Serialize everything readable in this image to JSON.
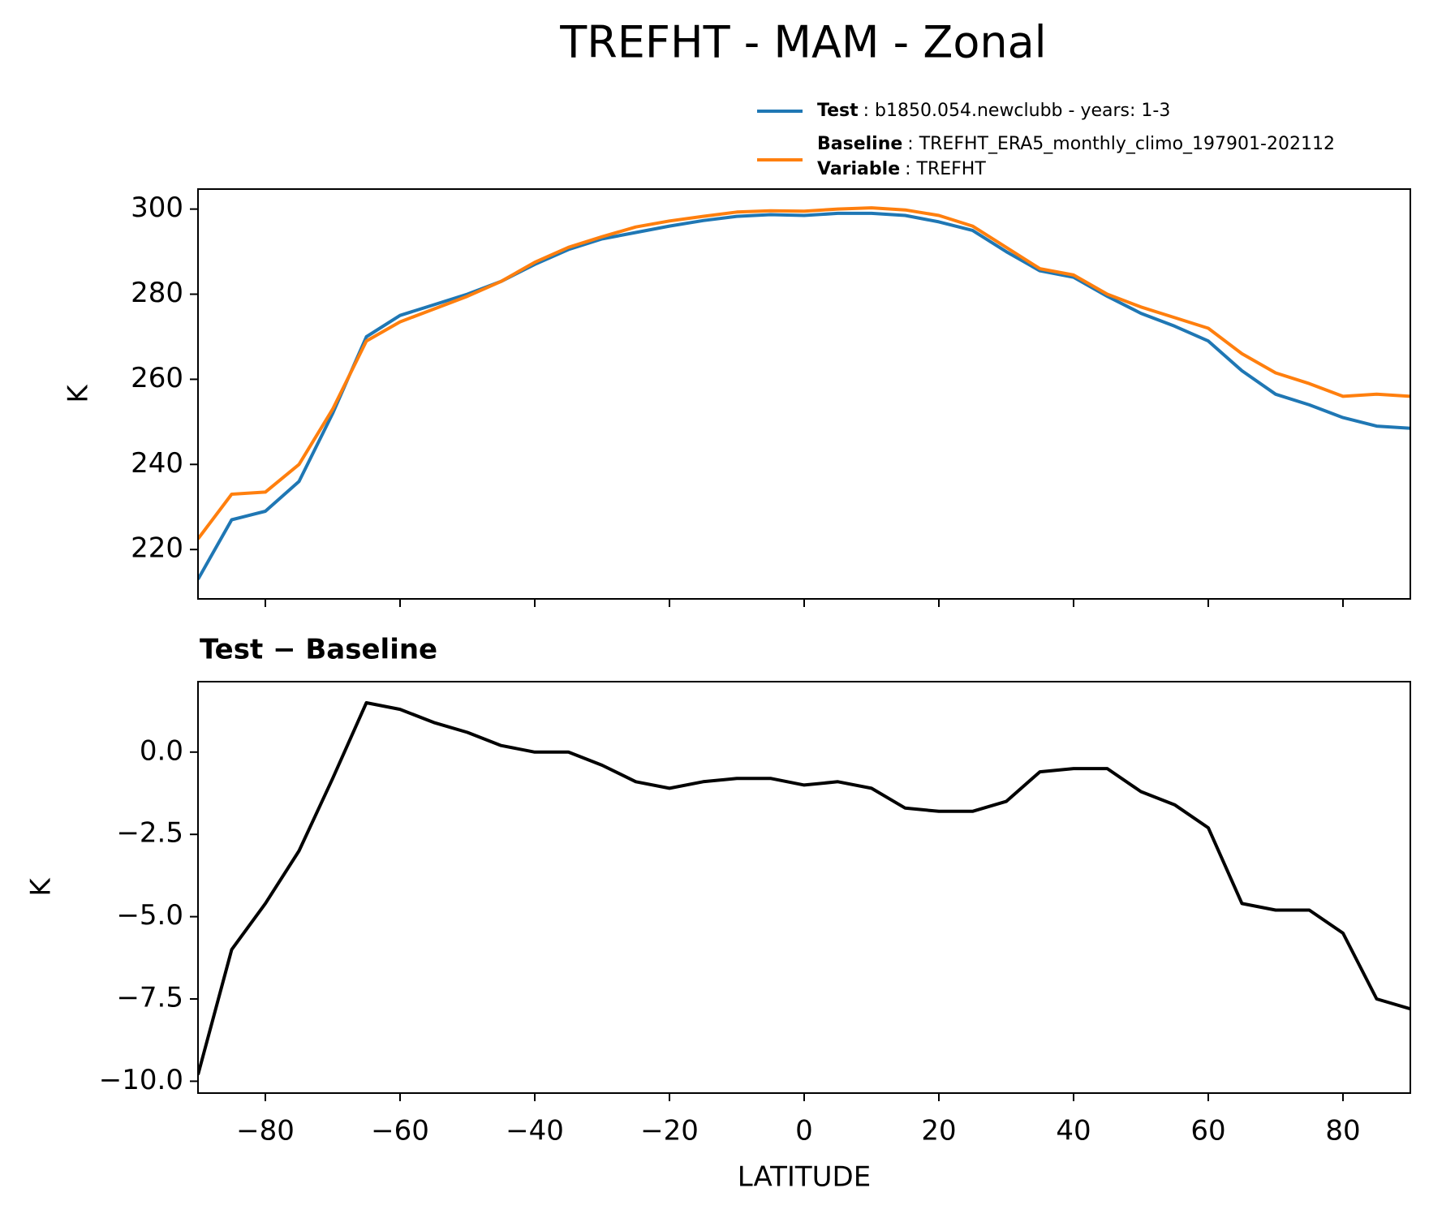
{
  "title": "TREFHT - MAM - Zonal",
  "chart_data": [
    {
      "type": "line",
      "ylabel": "K",
      "x": [
        -90,
        -85,
        -80,
        -75,
        -70,
        -65,
        -60,
        -55,
        -50,
        -45,
        -40,
        -35,
        -30,
        -25,
        -20,
        -15,
        -10,
        -5,
        0,
        5,
        10,
        15,
        20,
        25,
        30,
        35,
        40,
        45,
        50,
        55,
        60,
        65,
        70,
        75,
        80,
        85,
        90
      ],
      "series": [
        {
          "name": "Test",
          "description": ": b1850.054.newclubb - years: 1-3",
          "color": "#1f77b4",
          "values": [
            213,
            227,
            229,
            236,
            252,
            270,
            275,
            277.5,
            280,
            283,
            287,
            290.5,
            293,
            294.5,
            296,
            297.3,
            298.3,
            298.7,
            298.5,
            299,
            299,
            298.5,
            297,
            295,
            290,
            285.5,
            284,
            279.5,
            275.5,
            272.5,
            269,
            262,
            256.5,
            254,
            251,
            249,
            248.5
          ]
        },
        {
          "name": "Baseline",
          "description": ": TREFHT_ERA5_monthly_climo_197901-202112",
          "color": "#ff7f0e",
          "values": [
            222.5,
            233,
            233.5,
            240,
            253,
            269,
            273.5,
            276.5,
            279.5,
            283,
            287.5,
            291,
            293.5,
            295.8,
            297.2,
            298.3,
            299.3,
            299.6,
            299.5,
            300,
            300.3,
            299.8,
            298.5,
            296,
            291,
            286,
            284.5,
            280,
            277,
            274.5,
            272,
            266,
            261.5,
            259,
            256,
            256.5,
            256
          ]
        }
      ],
      "legend_extra": {
        "label": "Variable",
        "description": ": TREFHT"
      },
      "xlim": [
        -90,
        90
      ],
      "xticks": [
        -80,
        -60,
        -40,
        -20,
        0,
        20,
        40,
        60,
        80
      ],
      "ylim": [
        208.4,
        304.7
      ],
      "yticks": [
        220,
        240,
        260,
        280,
        300
      ]
    },
    {
      "type": "line",
      "title": "Test − Baseline",
      "ylabel": "K",
      "xlabel": "LATITUDE",
      "x": [
        -90,
        -85,
        -80,
        -75,
        -70,
        -65,
        -60,
        -55,
        -50,
        -45,
        -40,
        -35,
        -30,
        -25,
        -20,
        -15,
        -10,
        -5,
        0,
        5,
        10,
        15,
        20,
        25,
        30,
        35,
        40,
        45,
        50,
        55,
        60,
        65,
        70,
        75,
        80,
        85,
        90
      ],
      "series": [
        {
          "color": "#000000",
          "values": [
            -9.8,
            -6.0,
            -4.6,
            -3.0,
            -0.8,
            1.5,
            1.3,
            0.9,
            0.6,
            0.2,
            0.0,
            0.0,
            -0.4,
            -0.9,
            -1.1,
            -0.9,
            -0.8,
            -0.8,
            -1.0,
            -0.9,
            -1.1,
            -1.7,
            -1.8,
            -1.8,
            -1.5,
            -0.6,
            -0.5,
            -0.5,
            -1.2,
            -1.6,
            -2.3,
            -4.6,
            -4.8,
            -4.8,
            -5.5,
            -7.5,
            -7.8
          ]
        }
      ],
      "xlim": [
        -90,
        90
      ],
      "xticks": [
        {
          "value": -80,
          "label": "−80"
        },
        {
          "value": -60,
          "label": "−60"
        },
        {
          "value": -40,
          "label": "−40"
        },
        {
          "value": -20,
          "label": "−20"
        },
        0,
        20,
        40,
        60,
        80
      ],
      "ylim": [
        -10.36,
        2.14
      ],
      "yticks": [
        {
          "value": 0,
          "label": "0.0"
        },
        {
          "value": -2.5,
          "label": "−2.5"
        },
        {
          "value": -5,
          "label": "−5.0"
        },
        {
          "value": -7.5,
          "label": "−7.5"
        },
        {
          "value": -10,
          "label": "−10.0"
        }
      ]
    }
  ]
}
